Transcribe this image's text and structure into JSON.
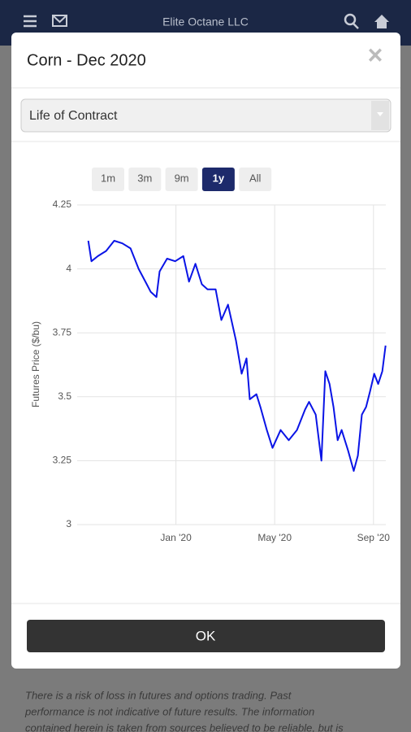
{
  "header": {
    "title": "Elite Octane LLC"
  },
  "modal": {
    "title": "Corn - Dec 2020",
    "close": "×",
    "select": "Life of Contract",
    "ranges": [
      "1m",
      "3m",
      "9m",
      "1y",
      "All"
    ],
    "active_range": 3,
    "button": "OK"
  },
  "disclaimer": [
    "There is a risk of loss in futures and options trading. Past",
    "performance is not indicative of future results. The information",
    "contained herein is taken from sources believed to be reliable, but is"
  ],
  "chart_data": {
    "type": "line",
    "y_label": "Futures Price ($/bu)",
    "color": "#0a14e6",
    "x": [
      -3.55,
      -3.42,
      -3.16,
      -2.83,
      -2.5,
      -2.17,
      -1.84,
      -1.51,
      -1.18,
      -1.02,
      -0.79,
      -0.66,
      -0.36,
      -0.03,
      0.3,
      0.53,
      0.79,
      1.05,
      1.28,
      1.61,
      1.84,
      2.11,
      2.43,
      2.66,
      2.86,
      2.99,
      3.26,
      3.42,
      3.68,
      3.91,
      4.24,
      4.57,
      4.9,
      5.23,
      5.39,
      5.66,
      5.89,
      6.05,
      6.22,
      6.38,
      6.55,
      6.71,
      6.97,
      7.2,
      7.37,
      7.53,
      7.7,
      7.86,
      8.03,
      8.19,
      8.36,
      8.49
    ],
    "values": [
      4.11,
      4.03,
      4.05,
      4.07,
      4.11,
      4.1,
      4.08,
      4.0,
      3.94,
      3.91,
      3.89,
      3.99,
      4.04,
      4.03,
      4.05,
      3.95,
      4.02,
      3.94,
      3.92,
      3.92,
      3.8,
      3.86,
      3.72,
      3.59,
      3.65,
      3.49,
      3.51,
      3.46,
      3.37,
      3.3,
      3.37,
      3.33,
      3.37,
      3.45,
      3.48,
      3.43,
      3.25,
      3.6,
      3.55,
      3.46,
      3.33,
      3.37,
      3.29,
      3.21,
      3.27,
      3.43,
      3.46,
      3.52,
      3.59,
      3.55,
      3.6,
      3.7
    ],
    "xlim": [
      -4,
      8.5
    ],
    "xticks": [
      {
        "value": 0,
        "label": "Jan '20"
      },
      {
        "value": 4,
        "label": "May '20"
      },
      {
        "value": 8,
        "label": "Sep '20"
      }
    ],
    "ylim": [
      3,
      4.25
    ],
    "yticks": [
      3,
      3.25,
      3.5,
      3.75,
      4,
      4.25
    ],
    "grid": true
  }
}
